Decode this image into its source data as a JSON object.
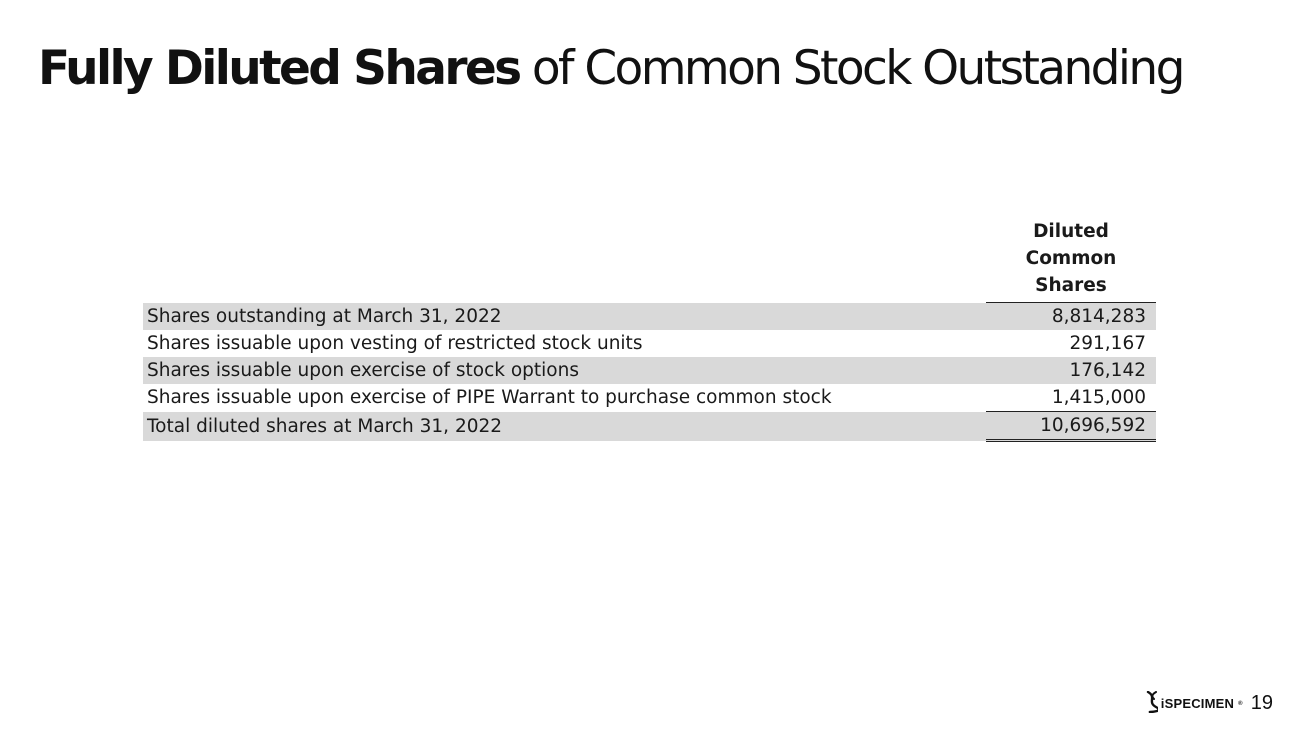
{
  "title": {
    "bold_part": "Fully Diluted Shares",
    "normal_part": " of Common Stock Outstanding"
  },
  "table": {
    "column_header": "Diluted\nCommon\nShares",
    "rows": [
      {
        "label": "Shares outstanding at March 31, 2022",
        "value": "8,814,283"
      },
      {
        "label": "Shares issuable upon vesting of restricted stock units",
        "value": "291,167"
      },
      {
        "label": "Shares issuable upon exercise of stock options",
        "value": "176,142"
      },
      {
        "label": "Shares issuable upon exercise of PIPE Warrant to purchase common stock",
        "value": "1,415,000"
      },
      {
        "label": "Total diluted shares at March 31, 2022",
        "value": "10,696,592"
      }
    ]
  },
  "footer": {
    "logo_text": "iSPECIMEN",
    "logo_mark": "®",
    "logo_icon": "dna-helix-icon",
    "page_number": "19"
  }
}
